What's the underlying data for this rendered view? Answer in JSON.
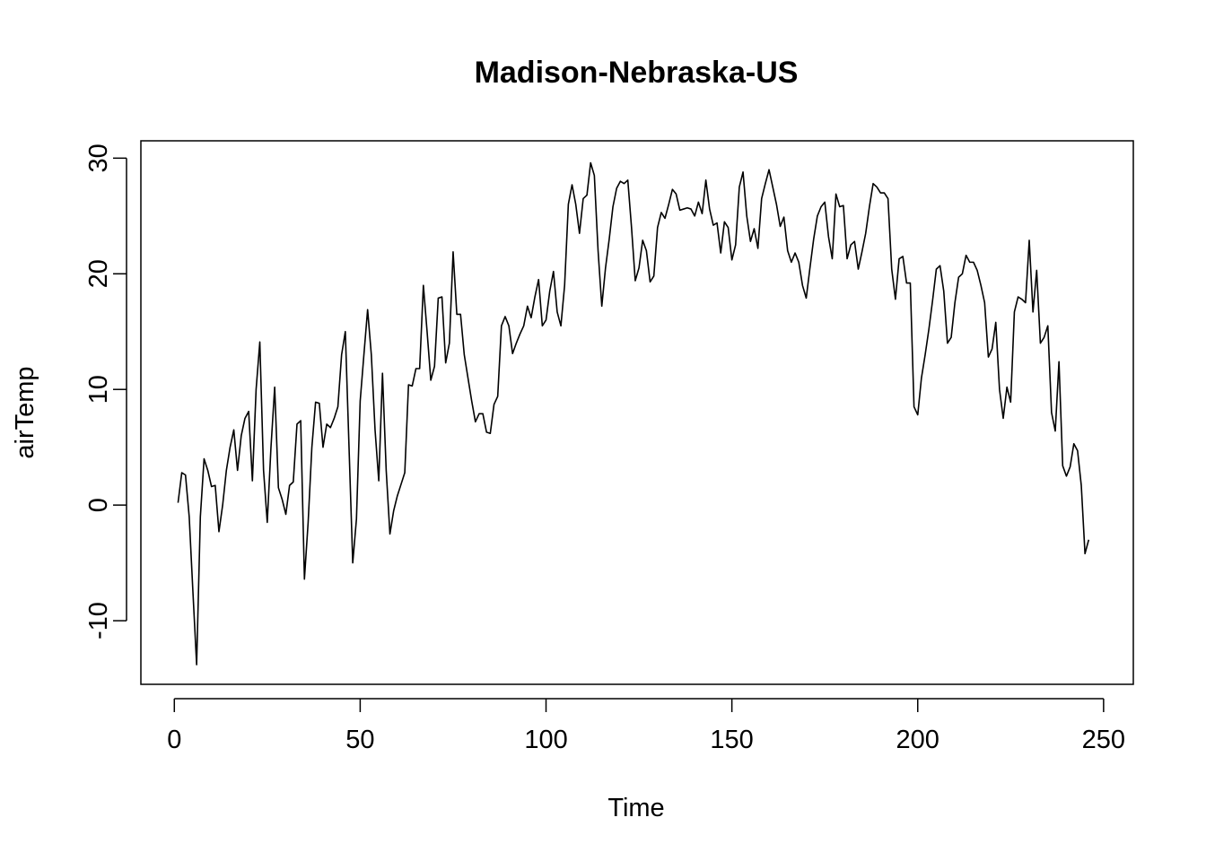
{
  "chart_data": {
    "type": "line",
    "title": "Madison-Nebraska-US",
    "xlabel": "Time",
    "ylabel": "airTemp",
    "xlim": [
      -9,
      258
    ],
    "ylim": [
      -15.5,
      31.5
    ],
    "x_ticks": [
      0,
      50,
      100,
      150,
      200,
      250
    ],
    "y_ticks": [
      -10,
      0,
      10,
      20,
      30
    ],
    "x_tick_labels": [
      "0",
      "50",
      "100",
      "150",
      "200",
      "250"
    ],
    "y_tick_labels": [
      "-10",
      "0",
      "10",
      "20",
      "30"
    ],
    "grid": false,
    "line_color": "#000000",
    "series": [
      {
        "x_start": 1,
        "x_step": 1,
        "values": [
          0.2,
          2.8,
          2.6,
          -1.0,
          -7.5,
          -13.8,
          -1.0,
          4.0,
          3.0,
          1.6,
          1.7,
          -2.3,
          0.0,
          3.0,
          5.0,
          6.5,
          3.0,
          6.0,
          7.5,
          8.1,
          2.1,
          10.0,
          14.1,
          3.0,
          -1.5,
          5.0,
          10.2,
          1.5,
          0.5,
          -0.8,
          1.7,
          2.0,
          7.0,
          7.3,
          -6.4,
          -1.5,
          5.0,
          8.9,
          8.8,
          5.0,
          7.0,
          6.7,
          7.5,
          8.5,
          13.0,
          15.0,
          5.0,
          -5.0,
          -1.2,
          9.0,
          13.0,
          16.9,
          13.0,
          6.5,
          2.1,
          11.4,
          3.0,
          -2.5,
          -0.5,
          0.8,
          1.8,
          2.8,
          10.4,
          10.3,
          11.8,
          11.8,
          19.0,
          15.0,
          10.8,
          12.0,
          17.9,
          18.0,
          12.3,
          14.0,
          21.9,
          16.5,
          16.5,
          13.0,
          11.0,
          9.0,
          7.2,
          7.9,
          7.9,
          6.3,
          6.2,
          8.7,
          9.4,
          15.5,
          16.3,
          15.5,
          13.1,
          14.0,
          14.8,
          15.5,
          17.2,
          16.2,
          18.0,
          19.5,
          15.5,
          16.0,
          18.5,
          20.2,
          16.7,
          15.5,
          19.0,
          26.0,
          27.7,
          26.0,
          23.5,
          26.5,
          26.8,
          29.6,
          28.5,
          22.0,
          17.2,
          20.5,
          23.0,
          25.8,
          27.4,
          28.0,
          27.8,
          28.1,
          24.0,
          19.4,
          20.5,
          22.9,
          22.0,
          19.3,
          19.8,
          24.0,
          25.3,
          24.8,
          26.0,
          27.3,
          26.9,
          25.5,
          25.6,
          25.7,
          25.6,
          25.0,
          26.2,
          25.2,
          28.1,
          25.6,
          24.2,
          24.4,
          21.8,
          24.5,
          24.0,
          21.2,
          22.5,
          27.5,
          28.8,
          25.0,
          22.8,
          23.9,
          22.2,
          26.5,
          27.8,
          29.0,
          27.5,
          26.0,
          24.1,
          24.9,
          22.0,
          21.0,
          21.8,
          21.0,
          19.0,
          17.9,
          20.5,
          23.0,
          25.0,
          25.8,
          26.2,
          23.2,
          21.3,
          26.9,
          25.8,
          25.9,
          21.3,
          22.5,
          22.8,
          20.4,
          21.9,
          23.5,
          25.8,
          27.8,
          27.5,
          27.0,
          27.0,
          26.5,
          20.4,
          17.8,
          21.3,
          21.5,
          19.2,
          19.2,
          8.5,
          7.8,
          11.0,
          13.0,
          15.2,
          17.7,
          20.4,
          20.7,
          18.5,
          14.0,
          14.5,
          17.5,
          19.7,
          20.0,
          21.6,
          21.0,
          21.0,
          20.3,
          19.0,
          17.5,
          12.8,
          13.5,
          15.8,
          10.0,
          7.5,
          10.2,
          8.9,
          16.7,
          18.0,
          17.8,
          17.5,
          22.9,
          16.7,
          20.3,
          14.0,
          14.5,
          15.5,
          8.0,
          6.4,
          12.4,
          3.4,
          2.5,
          3.3,
          5.3,
          4.7,
          1.7,
          -4.2,
          -3.0
        ]
      }
    ]
  }
}
